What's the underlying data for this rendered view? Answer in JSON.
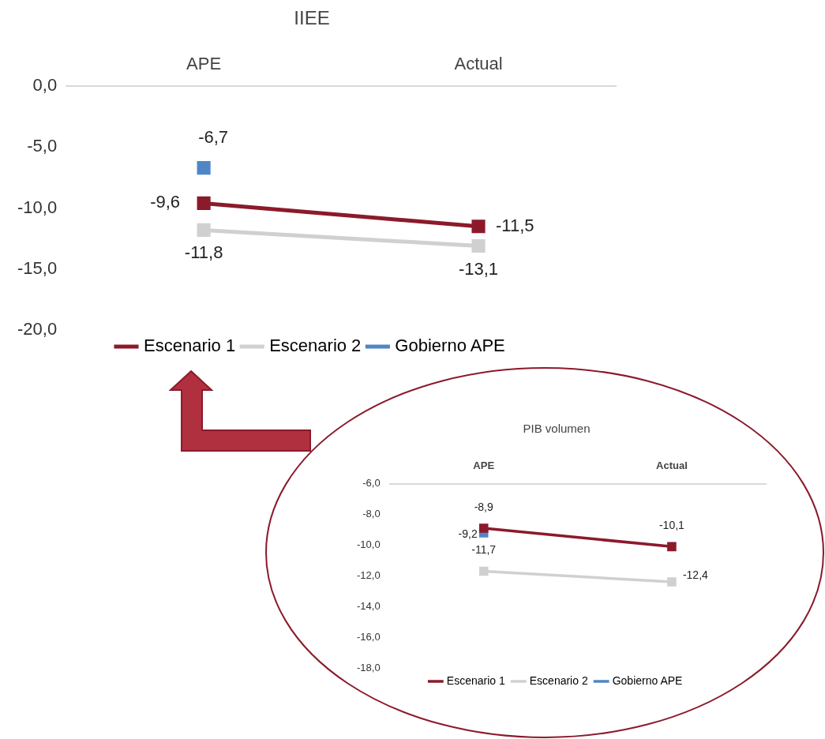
{
  "chart_data": [
    {
      "type": "line",
      "title": "IIEE",
      "categories": [
        "APE",
        "Actual"
      ],
      "series": [
        {
          "name": "Escenario 1",
          "color": "#8b1a2b",
          "values": [
            -9.6,
            -11.5
          ],
          "value_labels": [
            "-9,6",
            "-11,5"
          ]
        },
        {
          "name": "Escenario 2",
          "color": "#d0d0d0",
          "values": [
            -11.8,
            -13.1
          ],
          "value_labels": [
            "-11,8",
            "-13,1"
          ]
        },
        {
          "name": "Gobierno APE",
          "color": "#4f86c6",
          "values": [
            -6.7,
            null
          ],
          "value_labels": [
            "-6,7",
            null
          ]
        }
      ],
      "ylim": [
        -20,
        0
      ],
      "yticks": [
        {
          "value": 0,
          "label": "0,0"
        },
        {
          "value": -5,
          "label": "-5,0"
        },
        {
          "value": -10,
          "label": "-10,0"
        },
        {
          "value": -15,
          "label": "-15,0"
        },
        {
          "value": -20,
          "label": "-20,0"
        }
      ],
      "legend": "bottom",
      "marker": "square",
      "line_style": "solid"
    },
    {
      "type": "line",
      "title": "PIB volumen",
      "categories": [
        "APE",
        "Actual"
      ],
      "series": [
        {
          "name": "Escenario 1",
          "color": "#8b1a2b",
          "values": [
            -8.9,
            -10.1
          ],
          "value_labels": [
            "-8,9",
            "-10,1"
          ]
        },
        {
          "name": "Escenario 2",
          "color": "#d0d0d0",
          "values": [
            -11.7,
            -12.4
          ],
          "value_labels": [
            "-11,7",
            "-12,4"
          ]
        },
        {
          "name": "Gobierno APE",
          "color": "#4f86c6",
          "values": [
            -9.2,
            null
          ],
          "value_labels": [
            "-9,2",
            null
          ]
        }
      ],
      "ylim": [
        -18,
        -6
      ],
      "yticks": [
        {
          "value": -6,
          "label": "-6,0"
        },
        {
          "value": -8,
          "label": "-8,0"
        },
        {
          "value": -10,
          "label": "-10,0"
        },
        {
          "value": -12,
          "label": "-12,0"
        },
        {
          "value": -14,
          "label": "-14,0"
        },
        {
          "value": -16,
          "label": "-16,0"
        },
        {
          "value": -18,
          "label": "-18,0"
        }
      ],
      "legend": "bottom",
      "marker": "square",
      "line_style": "solid"
    }
  ]
}
